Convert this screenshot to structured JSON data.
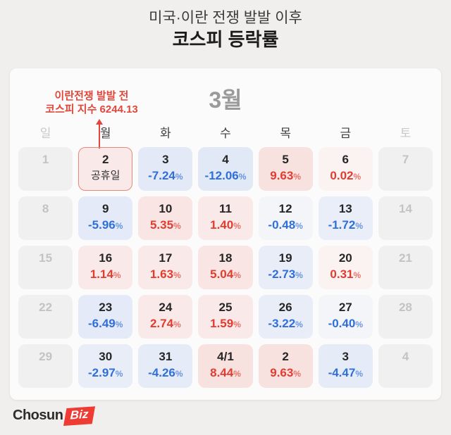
{
  "header": {
    "title_line1": "미국·이란 전쟁 발발 이후",
    "title_line2": "코스피 등락률"
  },
  "calendar": {
    "month_label": "3월",
    "annotation": {
      "line1": "이란전쟁 발발 전",
      "line2_prefix": "코스피 지수 ",
      "line2_value": "6244.13"
    },
    "percent_suffix": "%",
    "weekdays": [
      {
        "label": "일",
        "muted": true
      },
      {
        "label": "월",
        "muted": false
      },
      {
        "label": "화",
        "muted": false
      },
      {
        "label": "수",
        "muted": false
      },
      {
        "label": "목",
        "muted": false
      },
      {
        "label": "금",
        "muted": false
      },
      {
        "label": "토",
        "muted": true
      }
    ],
    "weeks": [
      [
        {
          "day": "1",
          "type": "empty"
        },
        {
          "day": "2",
          "type": "holiday",
          "note": "공휴일"
        },
        {
          "day": "3",
          "type": "value",
          "value": -7.24
        },
        {
          "day": "4",
          "type": "value",
          "value": -12.06
        },
        {
          "day": "5",
          "type": "value",
          "value": 9.63
        },
        {
          "day": "6",
          "type": "value",
          "value": 0.02
        },
        {
          "day": "7",
          "type": "empty"
        }
      ],
      [
        {
          "day": "8",
          "type": "empty"
        },
        {
          "day": "9",
          "type": "value",
          "value": -5.96
        },
        {
          "day": "10",
          "type": "value",
          "value": 5.35
        },
        {
          "day": "11",
          "type": "value",
          "value": 1.4
        },
        {
          "day": "12",
          "type": "value",
          "value": -0.48
        },
        {
          "day": "13",
          "type": "value",
          "value": -1.72
        },
        {
          "day": "14",
          "type": "empty"
        }
      ],
      [
        {
          "day": "15",
          "type": "empty"
        },
        {
          "day": "16",
          "type": "value",
          "value": 1.14
        },
        {
          "day": "17",
          "type": "value",
          "value": 1.63
        },
        {
          "day": "18",
          "type": "value",
          "value": 5.04
        },
        {
          "day": "19",
          "type": "value",
          "value": -2.73
        },
        {
          "day": "20",
          "type": "value",
          "value": 0.31
        },
        {
          "day": "21",
          "type": "empty"
        }
      ],
      [
        {
          "day": "22",
          "type": "empty"
        },
        {
          "day": "23",
          "type": "value",
          "value": -6.49
        },
        {
          "day": "24",
          "type": "value",
          "value": 2.74
        },
        {
          "day": "25",
          "type": "value",
          "value": 1.59
        },
        {
          "day": "26",
          "type": "value",
          "value": -3.22
        },
        {
          "day": "27",
          "type": "value",
          "value": -0.4
        },
        {
          "day": "28",
          "type": "empty"
        }
      ],
      [
        {
          "day": "29",
          "type": "empty"
        },
        {
          "day": "30",
          "type": "value",
          "value": -2.97
        },
        {
          "day": "31",
          "type": "value",
          "value": -4.26
        },
        {
          "day": "4/1",
          "type": "value",
          "value": 8.44
        },
        {
          "day": "2",
          "type": "value",
          "value": 9.63
        },
        {
          "day": "3",
          "type": "value",
          "value": -4.47
        },
        {
          "day": "4",
          "type": "empty"
        }
      ]
    ]
  },
  "footer": {
    "logo_text": "Chosun",
    "logo_badge": "Biz"
  },
  "colors": {
    "up": "#e23c30",
    "down": "#2f6fd9",
    "up_rgb": "226,60,48",
    "down_rgb": "47,111,217",
    "annotation_red": "#e0473a",
    "holiday_border": "#e8887b",
    "badge_red": "#ee3b33"
  },
  "chart_data": {
    "type": "heatmap",
    "title": "미국·이란 전쟁 발발 이후 코스피 등락률",
    "calendar_month": "3월",
    "annotation": "이란전쟁 발발 전 코스피 지수 6244.13",
    "unit": "%",
    "legend_position": "none",
    "color_coding": {
      "positive": "#e23c30",
      "negative": "#2f6fd9"
    },
    "series": [
      {
        "date": "3/2",
        "label": "공휴일",
        "value": null
      },
      {
        "date": "3/3",
        "value": -7.24
      },
      {
        "date": "3/4",
        "value": -12.06
      },
      {
        "date": "3/5",
        "value": 9.63
      },
      {
        "date": "3/6",
        "value": 0.02
      },
      {
        "date": "3/9",
        "value": -5.96
      },
      {
        "date": "3/10",
        "value": 5.35
      },
      {
        "date": "3/11",
        "value": 1.4
      },
      {
        "date": "3/12",
        "value": -0.48
      },
      {
        "date": "3/13",
        "value": -1.72
      },
      {
        "date": "3/16",
        "value": 1.14
      },
      {
        "date": "3/17",
        "value": 1.63
      },
      {
        "date": "3/18",
        "value": 5.04
      },
      {
        "date": "3/19",
        "value": -2.73
      },
      {
        "date": "3/20",
        "value": 0.31
      },
      {
        "date": "3/23",
        "value": -6.49
      },
      {
        "date": "3/24",
        "value": 2.74
      },
      {
        "date": "3/25",
        "value": 1.59
      },
      {
        "date": "3/26",
        "value": -3.22
      },
      {
        "date": "3/27",
        "value": -0.4
      },
      {
        "date": "3/30",
        "value": -2.97
      },
      {
        "date": "3/31",
        "value": -4.26
      },
      {
        "date": "4/1",
        "value": 8.44
      },
      {
        "date": "4/2",
        "value": 9.63
      },
      {
        "date": "4/3",
        "value": -4.47
      }
    ]
  }
}
